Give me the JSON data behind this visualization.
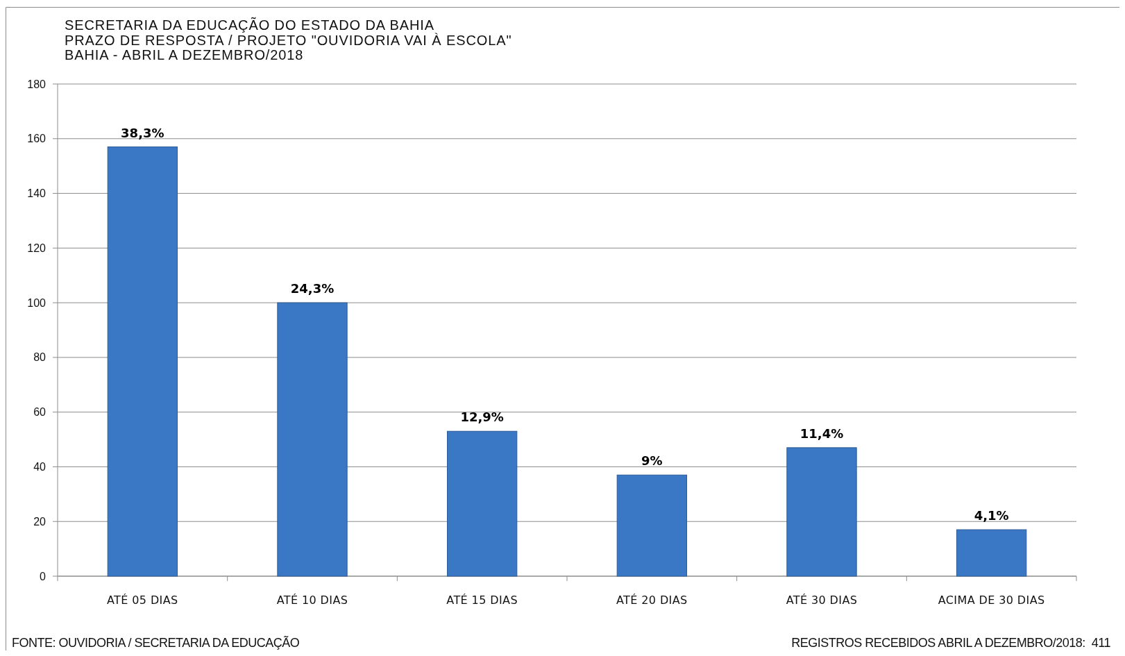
{
  "chart_data": {
    "type": "bar",
    "title": "SECRETARIA DA EDUCAÇÃO DO ESTADO DA BAHIA\nPRAZO DE RESPOSTA / PROJETO \"OUVIDORIA VAI À ESCOLA\"\nBAHIA - ABRIL A DEZEMBRO/2018",
    "categories": [
      "ATÉ 05 DIAS",
      "ATÉ 10 DIAS",
      "ATÉ 15 DIAS",
      "ATÉ 20 DIAS",
      "ATÉ 30 DIAS",
      "ACIMA DE 30 DIAS"
    ],
    "values": [
      157,
      100,
      53,
      37,
      47,
      17
    ],
    "color": "#3a78c6",
    "ylim": [
      0,
      180
    ],
    "yticks": [
      0,
      20,
      40,
      60,
      80,
      100,
      120,
      140,
      160,
      180
    ],
    "grid": "y",
    "annotations": [
      {
        "text": "38,3%",
        "x": "ATÉ 05 DIAS",
        "y": 157
      },
      {
        "text": "24,3%",
        "x": "ATÉ 10 DIAS",
        "y": 100
      },
      {
        "text": "12,9%",
        "x": "ATÉ 15 DIAS",
        "y": 53
      },
      {
        "text": "9%",
        "x": "ATÉ 20 DIAS",
        "y": 37
      },
      {
        "text": "11,4%",
        "x": "ATÉ 30 DIAS",
        "y": 47
      },
      {
        "text": "4,1%",
        "x": "ACIMA DE 30 DIAS",
        "y": 17
      },
      "FONTE: OUVIDORIA / SECRETARIA DA EDUCAÇÃO",
      "REGISTROS RECEBIDOS ABRIL A DEZEMBRO/2018:  411"
    ]
  }
}
